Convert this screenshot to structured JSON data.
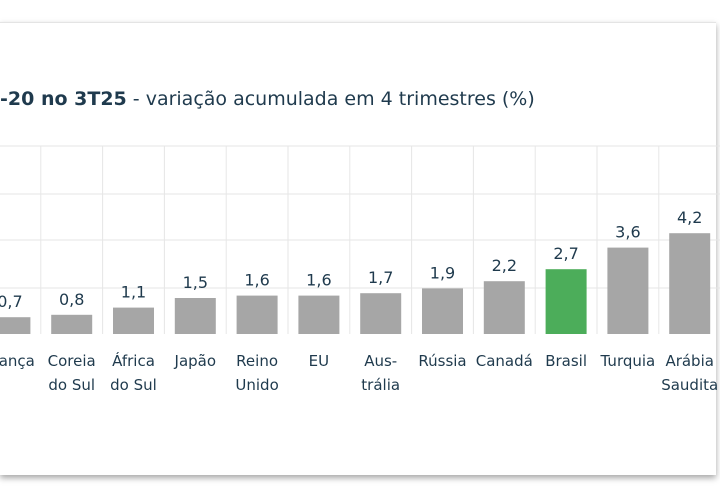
{
  "title": {
    "bold": "-20 no 3T25",
    "rest": " - variação acumulada em 4 trimestres (%)"
  },
  "colors": {
    "bar": "#a6a6a6",
    "highlight": "#4cad5a",
    "text": "#1f3a4d",
    "grid": "#e6e6e6"
  },
  "chart_data": {
    "type": "bar",
    "title": "-20 no 3T25 - variação acumulada em 4 trimestres (%)",
    "categories": [
      [
        "França"
      ],
      [
        "Coreia",
        "do Sul"
      ],
      [
        "África",
        "do Sul"
      ],
      [
        "Japão"
      ],
      [
        "Reino",
        "Unido"
      ],
      [
        "EU"
      ],
      [
        "Aus-",
        "trália"
      ],
      [
        "Rússia"
      ],
      [
        "Canadá"
      ],
      [
        "Brasil"
      ],
      [
        "Turquia"
      ],
      [
        "Arábia",
        "Saudita"
      ]
    ],
    "values": [
      0.7,
      0.8,
      1.1,
      1.5,
      1.6,
      1.6,
      1.7,
      1.9,
      2.2,
      2.7,
      3.6,
      4.2
    ],
    "labels": [
      "0,7",
      "0,8",
      "1,1",
      "1,5",
      "1,6",
      "1,6",
      "1,7",
      "1,9",
      "2,2",
      "2,7",
      "3,6",
      "4,2"
    ],
    "highlight": "Brasil",
    "xlabel": "",
    "ylabel": "",
    "grid": true,
    "legend": "none"
  }
}
